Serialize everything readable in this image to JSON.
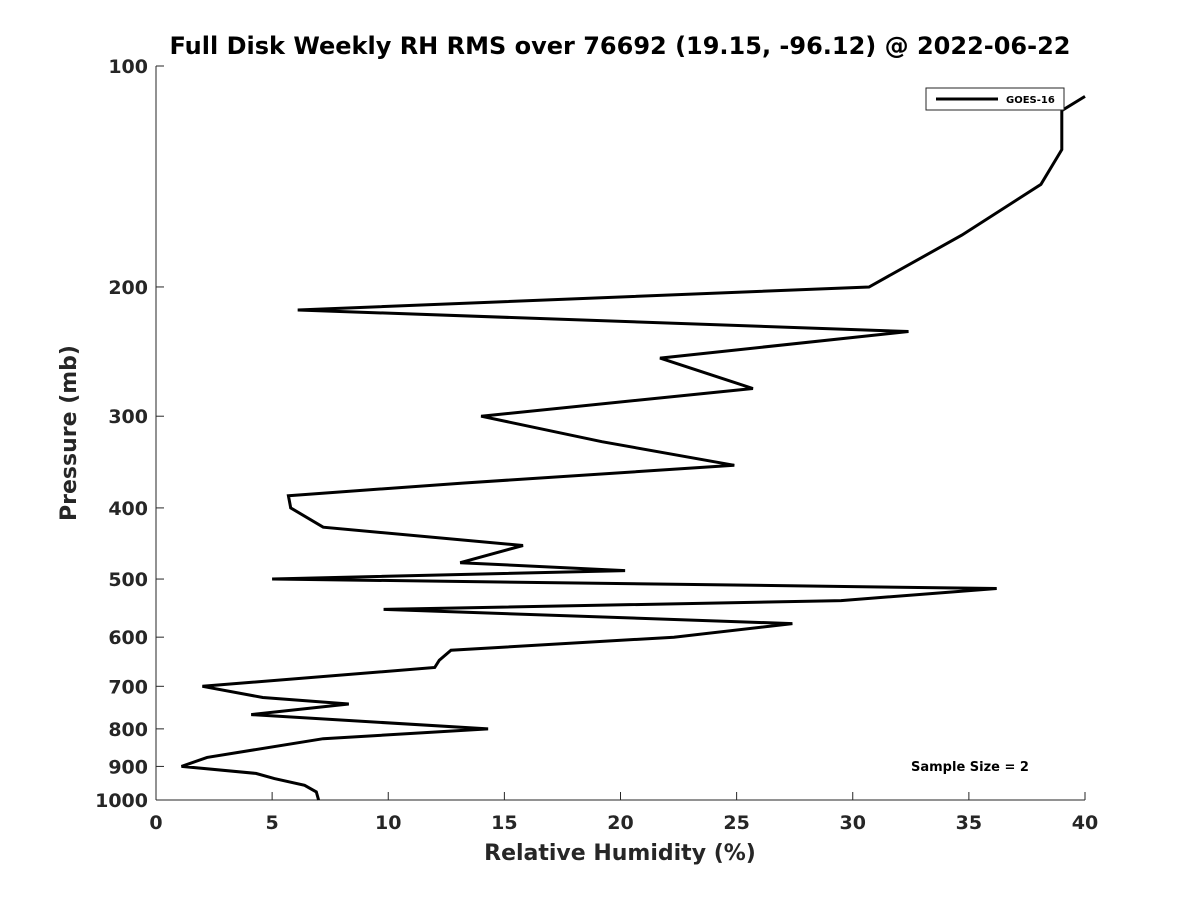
{
  "chart_data": {
    "type": "line",
    "title": "Full Disk Weekly RH RMS over 76692 (19.15, -96.12) @ 2022-06-22",
    "xlabel": "Relative Humidity (%)",
    "ylabel": "Pressure (mb)",
    "xlim": [
      0,
      40
    ],
    "ylim": [
      1000,
      100
    ],
    "yscale": "log",
    "y_reversed": true,
    "grid": false,
    "legend_position": "top-right",
    "xticks": [
      "0",
      "5",
      "10",
      "15",
      "20",
      "25",
      "30",
      "35",
      "40"
    ],
    "yticks": [
      "100",
      "200",
      "300",
      "400",
      "500",
      "600",
      "700",
      "800",
      "900",
      "1000"
    ],
    "series": [
      {
        "name": "GOES-16",
        "color": "#000000",
        "points": [
          [
            40.0,
            110
          ],
          [
            39.0,
            115
          ],
          [
            39.0,
            130
          ],
          [
            38.1,
            145
          ],
          [
            34.7,
            170
          ],
          [
            30.7,
            200
          ],
          [
            6.1,
            215
          ],
          [
            32.4,
            230
          ],
          [
            21.7,
            250
          ],
          [
            25.7,
            275
          ],
          [
            14.0,
            300
          ],
          [
            19.2,
            325
          ],
          [
            24.9,
            350
          ],
          [
            13.2,
            370
          ],
          [
            5.7,
            385
          ],
          [
            5.8,
            400
          ],
          [
            7.2,
            425
          ],
          [
            15.8,
            450
          ],
          [
            13.1,
            475
          ],
          [
            20.2,
            487
          ],
          [
            5.0,
            500
          ],
          [
            36.2,
            515
          ],
          [
            29.5,
            535
          ],
          [
            9.8,
            550
          ],
          [
            27.4,
            575
          ],
          [
            22.3,
            600
          ],
          [
            12.7,
            625
          ],
          [
            12.2,
            645
          ],
          [
            12.0,
            660
          ],
          [
            2.0,
            700
          ],
          [
            4.6,
            725
          ],
          [
            8.3,
            740
          ],
          [
            4.1,
            765
          ],
          [
            14.3,
            800
          ],
          [
            7.2,
            825
          ],
          [
            2.2,
            875
          ],
          [
            1.1,
            900
          ],
          [
            4.3,
            920
          ],
          [
            5.1,
            935
          ],
          [
            6.4,
            955
          ],
          [
            6.9,
            975
          ],
          [
            7.0,
            1000
          ]
        ]
      }
    ],
    "annotation": "Sample Size = 2"
  }
}
